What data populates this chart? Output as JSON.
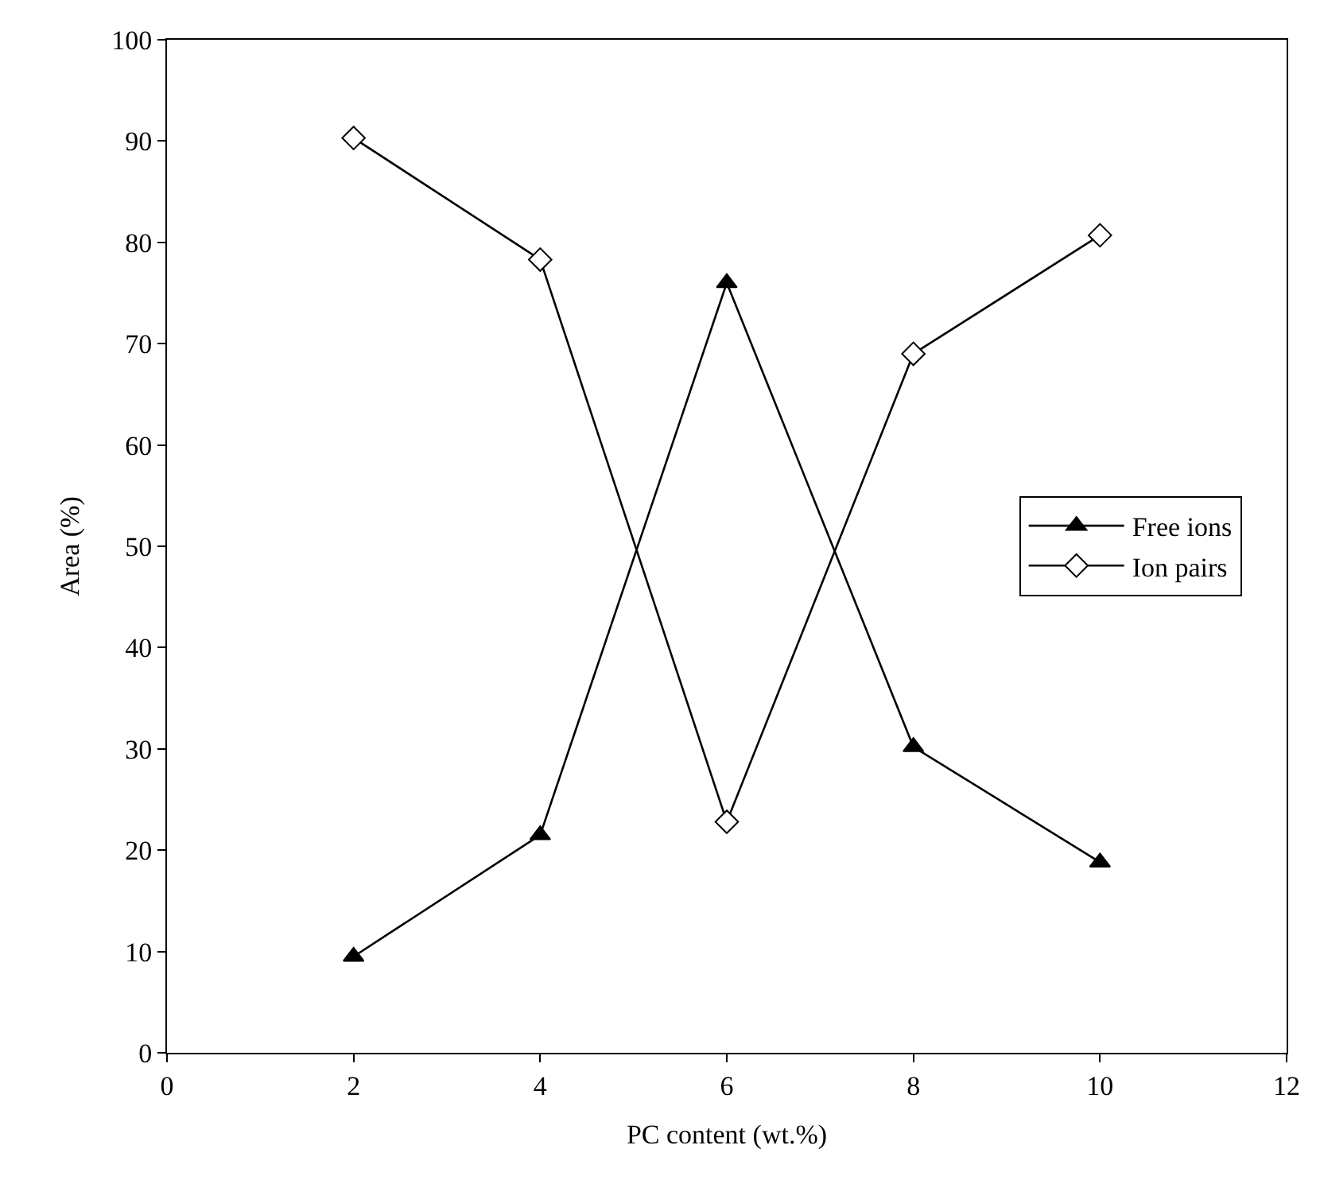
{
  "chart_data": {
    "type": "line",
    "xlabel": "PC content (wt.%)",
    "ylabel": "Area (%)",
    "x": [
      2,
      4,
      6,
      8,
      10
    ],
    "series": [
      {
        "name": "Free ions",
        "color": "#000000",
        "marker": "triangle",
        "values": [
          9.5,
          21.5,
          76,
          30.2,
          18.8
        ]
      },
      {
        "name": "Ion pairs",
        "color": "#000000",
        "marker": "diamond",
        "values": [
          90.3,
          78.3,
          22.8,
          69,
          80.7
        ]
      }
    ],
    "xlim": [
      0,
      12
    ],
    "xticks": [
      0,
      2,
      4,
      6,
      8,
      10,
      12
    ],
    "ylim": [
      0,
      100
    ],
    "yticks": [
      0,
      10,
      20,
      30,
      40,
      50,
      60,
      70,
      80,
      90,
      100
    ],
    "legend": "right"
  }
}
